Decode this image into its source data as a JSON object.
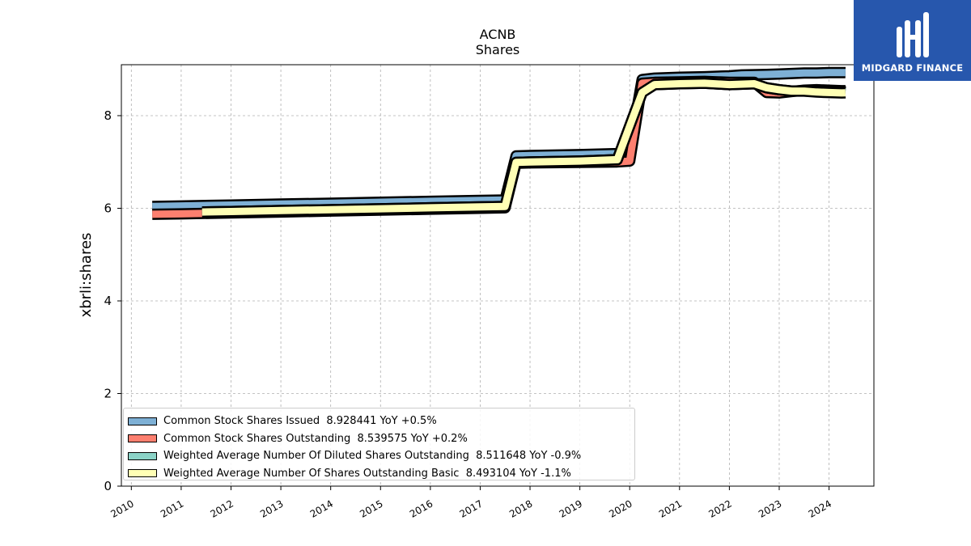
{
  "brand": {
    "name": "MIDGARD FINANCE",
    "bg_color": "#2757ad",
    "logo_icon": "midgard-logo-icon"
  },
  "chart_data": {
    "type": "area",
    "title": "ACNB",
    "subtitle": "Shares",
    "xlabel": "",
    "ylabel": "xbrli:shares",
    "xlim": [
      2009.8,
      2024.9
    ],
    "ylim": [
      0,
      9.1
    ],
    "x_ticks": [
      "2010",
      "2011",
      "2012",
      "2013",
      "2014",
      "2015",
      "2016",
      "2017",
      "2018",
      "2019",
      "2020",
      "2021",
      "2022",
      "2023",
      "2024"
    ],
    "y_ticks": [
      "0",
      "2",
      "4",
      "6",
      "8"
    ],
    "grid": true,
    "legend_position": "lower-left",
    "series": [
      {
        "name": "Common Stock Shares Issued",
        "legend_label": "Common Stock Shares Issued  8.928441 YoY +0.5%",
        "color": "#7eb0d5",
        "x": [
          2010.42,
          2011.0,
          2012.0,
          2013.0,
          2014.0,
          2015.0,
          2016.0,
          2017.0,
          2017.5,
          2017.72,
          2018.0,
          2019.0,
          2019.75,
          2020.0,
          2020.25,
          2020.5,
          2021.0,
          2021.5,
          2022.0,
          2022.25,
          2022.75,
          2023.0,
          2023.25,
          2023.5,
          2023.75,
          2024.0,
          2024.25,
          2024.33
        ],
        "y": [
          6.04,
          6.05,
          6.07,
          6.09,
          6.11,
          6.13,
          6.15,
          6.17,
          6.18,
          7.13,
          7.14,
          7.16,
          7.18,
          7.25,
          8.78,
          8.81,
          8.83,
          8.84,
          8.86,
          8.88,
          8.89,
          8.9,
          8.91,
          8.92,
          8.92,
          8.93,
          8.93,
          8.928441
        ]
      },
      {
        "name": "Common Stock Shares Outstanding",
        "legend_label": "Common Stock Shares Outstanding  8.539575 YoY +0.2%",
        "color": "#fd7f6f",
        "x": [
          2010.42,
          2011.0,
          2012.0,
          2013.0,
          2014.0,
          2015.0,
          2016.0,
          2017.0,
          2017.5,
          2017.72,
          2018.0,
          2019.0,
          2019.75,
          2020.0,
          2020.25,
          2020.5,
          2021.0,
          2021.5,
          2022.0,
          2022.5,
          2022.75,
          2023.0,
          2023.25,
          2023.5,
          2023.75,
          2024.0,
          2024.25,
          2024.33
        ],
        "y": [
          5.87,
          5.88,
          5.9,
          5.92,
          5.94,
          5.96,
          5.98,
          6.0,
          6.01,
          6.97,
          6.98,
          6.99,
          7.0,
          7.02,
          8.7,
          8.72,
          8.73,
          8.74,
          8.72,
          8.72,
          8.5,
          8.49,
          8.52,
          8.55,
          8.56,
          8.55,
          8.54,
          8.539575
        ]
      },
      {
        "name": "Weighted Average Number Of Diluted Shares Outstanding",
        "legend_label": "Weighted Average Number Of Diluted Shares Outstanding  8.511648 YoY -0.9%",
        "color": "#8bd3c7",
        "x": [
          2011.42,
          2012.0,
          2013.0,
          2014.0,
          2015.0,
          2016.0,
          2017.0,
          2017.5,
          2017.72,
          2018.0,
          2019.0,
          2019.75,
          2020.25,
          2020.5,
          2021.0,
          2021.5,
          2022.0,
          2022.5,
          2022.75,
          2023.0,
          2023.25,
          2023.5,
          2023.75,
          2024.0,
          2024.25,
          2024.33
        ],
        "y": [
          5.92,
          5.93,
          5.95,
          5.97,
          5.99,
          6.01,
          6.03,
          6.04,
          6.99,
          7.0,
          7.02,
          7.05,
          8.5,
          8.67,
          8.69,
          8.7,
          8.67,
          8.69,
          8.6,
          8.56,
          8.53,
          8.54,
          8.53,
          8.52,
          8.52,
          8.511648
        ]
      },
      {
        "name": "Weighted Average Number Of Shares Outstanding Basic",
        "legend_label": "Weighted Average Number Of Shares Outstanding Basic  8.493104 YoY -1.1%",
        "color": "#ffffb5",
        "x": [
          2011.42,
          2012.0,
          2013.0,
          2014.0,
          2015.0,
          2016.0,
          2017.0,
          2017.5,
          2017.72,
          2018.0,
          2019.0,
          2019.75,
          2020.25,
          2020.5,
          2021.0,
          2021.5,
          2022.0,
          2022.5,
          2022.75,
          2023.0,
          2023.25,
          2023.5,
          2023.75,
          2024.0,
          2024.25,
          2024.33
        ],
        "y": [
          5.92,
          5.93,
          5.95,
          5.97,
          5.99,
          6.01,
          6.03,
          6.04,
          6.99,
          7.0,
          7.02,
          7.05,
          8.5,
          8.67,
          8.69,
          8.7,
          8.67,
          8.69,
          8.6,
          8.56,
          8.53,
          8.53,
          8.51,
          8.5,
          8.49,
          8.493104
        ]
      }
    ]
  }
}
